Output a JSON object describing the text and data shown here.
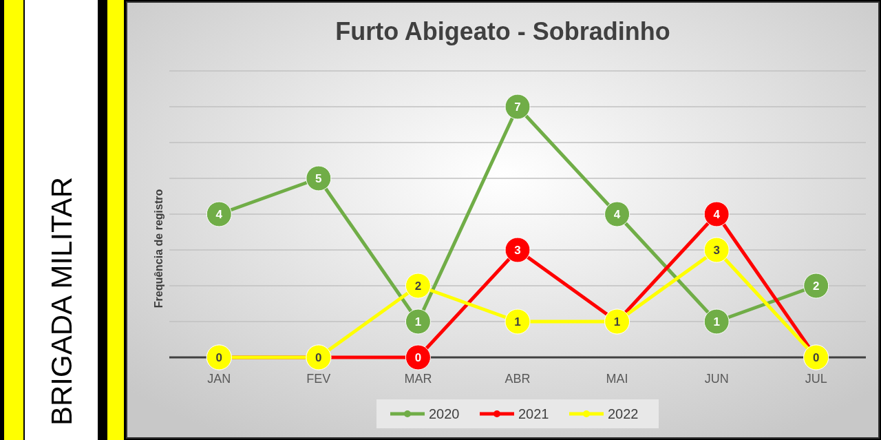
{
  "chart_data": {
    "type": "line",
    "title": "Furto Abigeato - Sobradinho",
    "ylabel": "Frequência de registro",
    "annotations": [
      "BRIGADA MILITAR"
    ],
    "categories": [
      "JAN",
      "FEV",
      "MAR",
      "ABR",
      "MAI",
      "JUN",
      "JUL"
    ],
    "series": [
      {
        "name": "2020",
        "color": "#70ad47",
        "values": [
          4,
          5,
          1,
          7,
          4,
          1,
          2
        ]
      },
      {
        "name": "2021",
        "color": "#ff0000",
        "values": [
          0,
          0,
          0,
          3,
          1,
          4,
          0
        ],
        "value_labels": [
          null,
          null,
          "0",
          "3",
          null,
          "4",
          null
        ]
      },
      {
        "name": "2022",
        "color": "#ffff00",
        "values": [
          0,
          0,
          2,
          1,
          1,
          3,
          0
        ]
      }
    ],
    "ylim": [
      0,
      8
    ],
    "yticks": [
      {
        "value": 0,
        "label": null
      },
      {
        "value": 1,
        "label": null
      },
      {
        "value": 2,
        "label": null
      },
      {
        "value": 3,
        "label": null
      },
      {
        "value": 4,
        "label": null
      },
      {
        "value": 5,
        "label": null
      },
      {
        "value": 6,
        "label": null
      },
      {
        "value": 7,
        "label": null
      },
      {
        "value": 8,
        "label": null
      }
    ],
    "tick_labels": "x",
    "grid": "y",
    "legend": "bottom",
    "marker": "circle",
    "line_style": "solid",
    "data_labels": true
  }
}
